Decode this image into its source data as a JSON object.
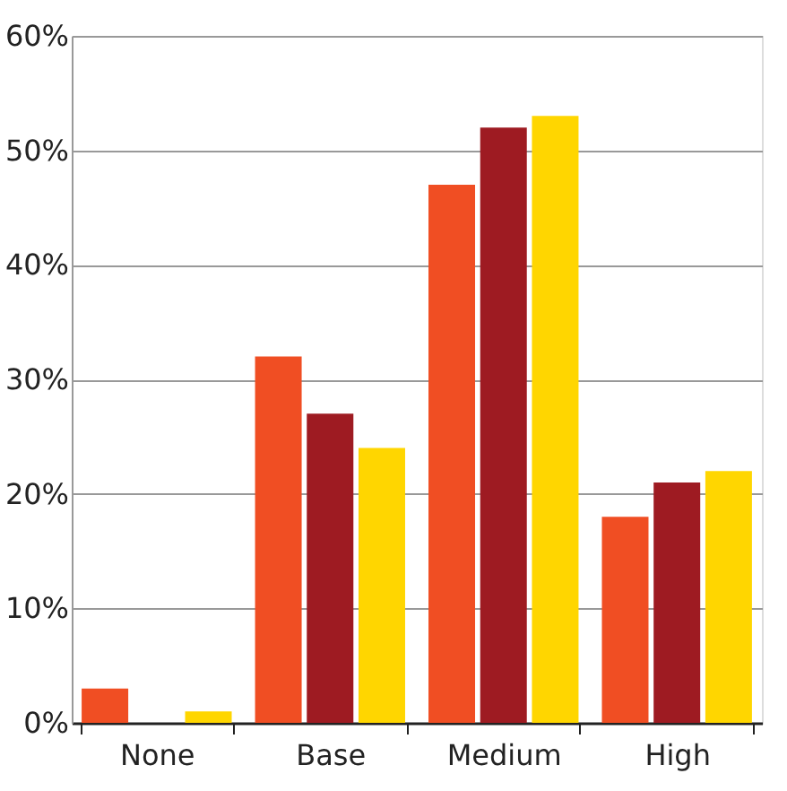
{
  "chart_data": {
    "type": "bar",
    "categories": [
      "None",
      "Base",
      "Medium",
      "High"
    ],
    "series": [
      {
        "color": "#f04e23",
        "values": [
          3,
          32,
          47,
          18
        ]
      },
      {
        "color": "#9e1b22",
        "values": [
          0,
          27,
          52,
          21
        ]
      },
      {
        "color": "#ffd600",
        "values": [
          1,
          24,
          53,
          22
        ]
      }
    ],
    "ylim": [
      0,
      60
    ],
    "yticks": [
      {
        "value": 0,
        "label": "0%"
      },
      {
        "value": 10,
        "label": "10%"
      },
      {
        "value": 20,
        "label": "20%"
      },
      {
        "value": 30,
        "label": "30%"
      },
      {
        "value": 40,
        "label": "40%"
      },
      {
        "value": 50,
        "label": "50%"
      },
      {
        "value": 60,
        "label": "60%"
      }
    ],
    "grid": "y",
    "legend": false
  }
}
